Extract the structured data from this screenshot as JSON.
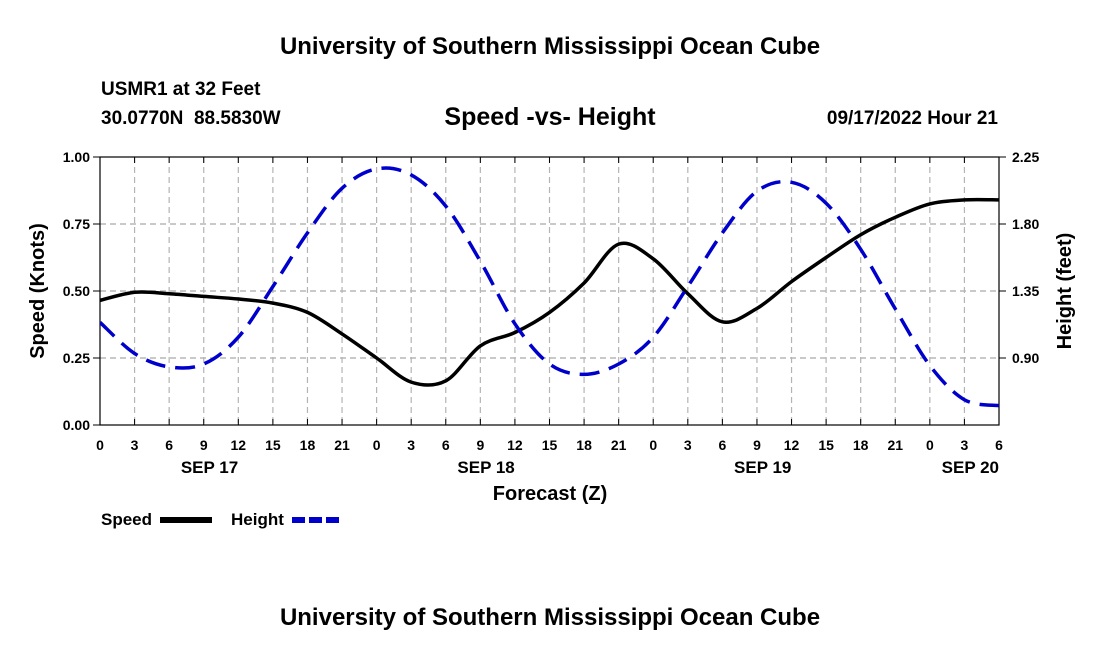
{
  "header": {
    "title": "University of Southern Mississippi Ocean Cube",
    "station": "USMR1 at 32 Feet",
    "coords": "30.0770N  88.5830W",
    "plot_title": "Speed -vs- Height",
    "datetime": "09/17/2022 Hour 21"
  },
  "footer": {
    "title": "University of Southern Mississippi Ocean Cube"
  },
  "legend": [
    {
      "label": "Speed",
      "color": "#000000",
      "dash": "solid"
    },
    {
      "label": "Height",
      "color": "#0000cc",
      "dash": "dashed"
    }
  ],
  "chart_data": {
    "type": "line",
    "title": "Speed -vs- Height",
    "xlabel": "Forecast (Z)",
    "ylabel": "Speed (Knots)",
    "y2label": "Height (feet)",
    "xlim": [
      0,
      78
    ],
    "ylim": [
      0,
      1
    ],
    "y2lim": [
      0.45,
      2.25
    ],
    "grid": true,
    "x_ticks": [
      0,
      3,
      6,
      9,
      12,
      15,
      18,
      21,
      24,
      27,
      30,
      33,
      36,
      39,
      42,
      45,
      48,
      51,
      54,
      57,
      60,
      63,
      66,
      69,
      72,
      75,
      78
    ],
    "x_tick_labels": [
      "0",
      "3",
      "6",
      "9",
      "12",
      "15",
      "18",
      "21",
      "0",
      "3",
      "6",
      "9",
      "12",
      "15",
      "18",
      "21",
      "0",
      "3",
      "6",
      "9",
      "12",
      "15",
      "18",
      "21",
      "0",
      "3",
      "6"
    ],
    "y_ticks": [
      0,
      0.25,
      0.5,
      0.75,
      1
    ],
    "y_tick_labels": [
      "0.00",
      "0.25",
      "0.50",
      "0.75",
      "1.00"
    ],
    "y2_ticks": [
      0.9,
      1.35,
      1.8,
      2.25
    ],
    "y2_tick_labels": [
      "0.90",
      "1.35",
      "1.80",
      "2.25"
    ],
    "date_labels": [
      {
        "label": "SEP 17",
        "x": 9.5
      },
      {
        "label": "SEP 18",
        "x": 33.5
      },
      {
        "label": "SEP 19",
        "x": 57.5
      },
      {
        "label": "SEP 20",
        "x": 77
      }
    ],
    "series": [
      {
        "name": "Speed",
        "axis": "left",
        "color": "#000000",
        "x": [
          0,
          3,
          6,
          9,
          12,
          15,
          18,
          21,
          24,
          27,
          30,
          33,
          36,
          39,
          42,
          45,
          48,
          51,
          54,
          57,
          60,
          63,
          66,
          69,
          72,
          75,
          78
        ],
        "values": [
          0.465,
          0.495,
          0.49,
          0.48,
          0.47,
          0.455,
          0.42,
          0.34,
          0.25,
          0.16,
          0.165,
          0.295,
          0.345,
          0.42,
          0.53,
          0.675,
          0.62,
          0.49,
          0.385,
          0.435,
          0.535,
          0.625,
          0.71,
          0.775,
          0.825,
          0.84,
          0.84
        ]
      },
      {
        "name": "Height",
        "axis": "right",
        "color": "#0000cc",
        "x": [
          0,
          3,
          6,
          9,
          12,
          15,
          18,
          21,
          24,
          27,
          30,
          33,
          36,
          39,
          42,
          45,
          48,
          51,
          54,
          57,
          60,
          63,
          66,
          69,
          72,
          75,
          78
        ],
        "values": [
          1.14,
          0.93,
          0.84,
          0.86,
          1.04,
          1.38,
          1.74,
          2.04,
          2.17,
          2.13,
          1.92,
          1.55,
          1.13,
          0.86,
          0.79,
          0.86,
          1.04,
          1.38,
          1.74,
          2.02,
          2.08,
          1.94,
          1.63,
          1.23,
          0.85,
          0.62,
          0.58
        ]
      }
    ]
  }
}
